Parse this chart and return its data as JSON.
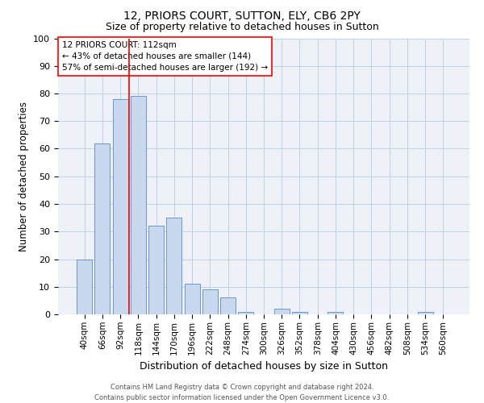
{
  "title1": "12, PRIORS COURT, SUTTON, ELY, CB6 2PY",
  "title2": "Size of property relative to detached houses in Sutton",
  "xlabel": "Distribution of detached houses by size in Sutton",
  "ylabel": "Number of detached properties",
  "categories": [
    "40sqm",
    "66sqm",
    "92sqm",
    "118sqm",
    "144sqm",
    "170sqm",
    "196sqm",
    "222sqm",
    "248sqm",
    "274sqm",
    "300sqm",
    "326sqm",
    "352sqm",
    "378sqm",
    "404sqm",
    "430sqm",
    "456sqm",
    "482sqm",
    "508sqm",
    "534sqm",
    "560sqm"
  ],
  "values": [
    20,
    62,
    78,
    79,
    32,
    35,
    11,
    9,
    6,
    1,
    0,
    2,
    1,
    0,
    1,
    0,
    0,
    0,
    0,
    1,
    0
  ],
  "bar_color": "#c8d8ee",
  "bar_edge_color": "#5a8ac6",
  "grid_color": "#b8cce4",
  "background_color": "#eef2f8",
  "property_line_label": "12 PRIORS COURT: 112sqm",
  "annotation_line1": "← 43% of detached houses are smaller (144)",
  "annotation_line2": "57% of semi-detached houses are larger (192) →",
  "footer1": "Contains HM Land Registry data © Crown copyright and database right 2024.",
  "footer2": "Contains public sector information licensed under the Open Government Licence v3.0.",
  "ylim": [
    0,
    100
  ],
  "yticks": [
    0,
    10,
    20,
    30,
    40,
    50,
    60,
    70,
    80,
    90,
    100
  ],
  "property_line_bar_index": 2.5
}
